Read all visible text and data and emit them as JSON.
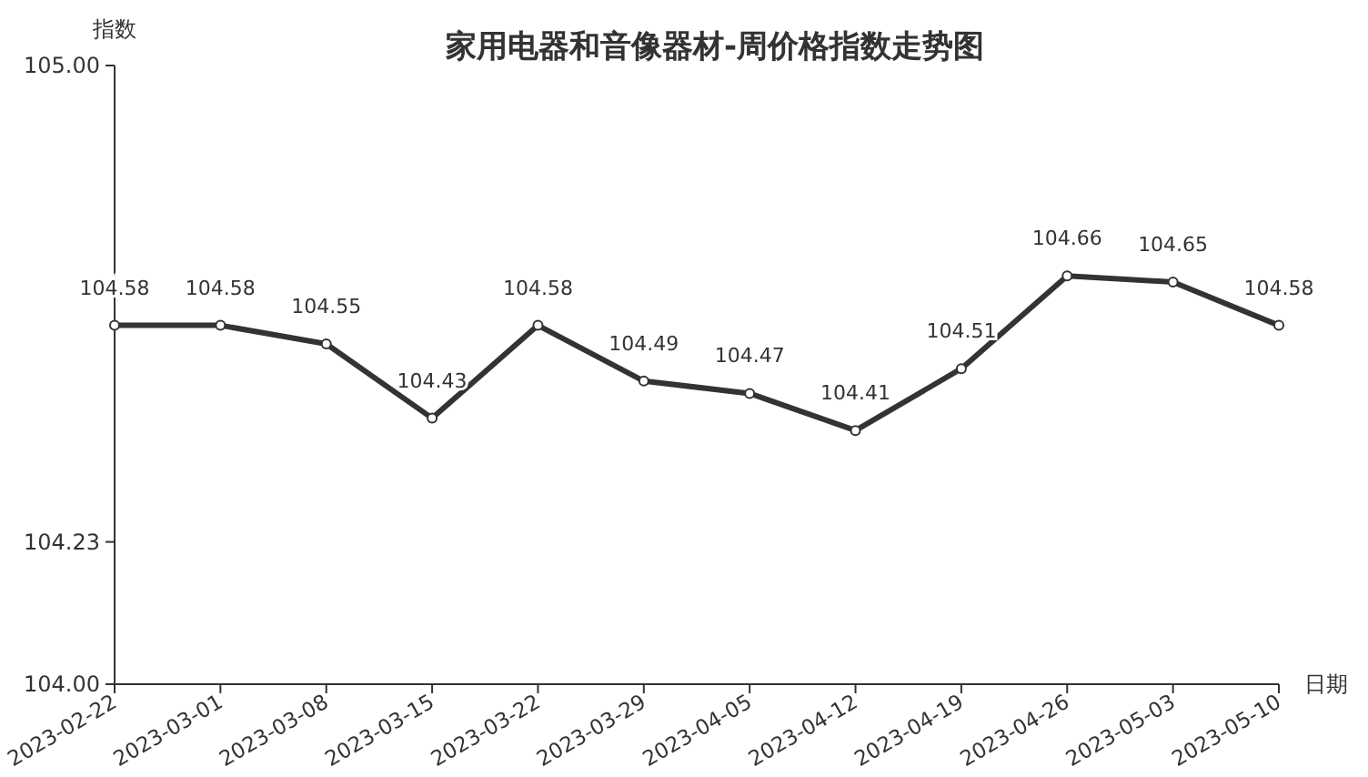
{
  "chart_data": {
    "type": "line",
    "title": "家用电器和音像器材-周价格指数走势图",
    "xlabel": "日期",
    "ylabel": "指数",
    "categories": [
      "2023-02-22",
      "2023-03-01",
      "2023-03-08",
      "2023-03-15",
      "2023-03-22",
      "2023-03-29",
      "2023-04-05",
      "2023-04-12",
      "2023-04-19",
      "2023-04-26",
      "2023-05-03",
      "2023-05-10"
    ],
    "series": [
      {
        "color": "#333333",
        "values": [
          104.58,
          104.58,
          104.55,
          104.43,
          104.58,
          104.49,
          104.47,
          104.41,
          104.51,
          104.66,
          104.65,
          104.58
        ]
      }
    ],
    "ylim": [
      104.0,
      105.0
    ],
    "yticks": [
      {
        "value": 104.0,
        "label": "104.00"
      },
      {
        "value": 104.23,
        "label": "104.23"
      },
      {
        "value": 105.0,
        "label": "105.00"
      }
    ],
    "data_labels": true,
    "marker": "circle",
    "line_style": "solid",
    "grid": false
  }
}
